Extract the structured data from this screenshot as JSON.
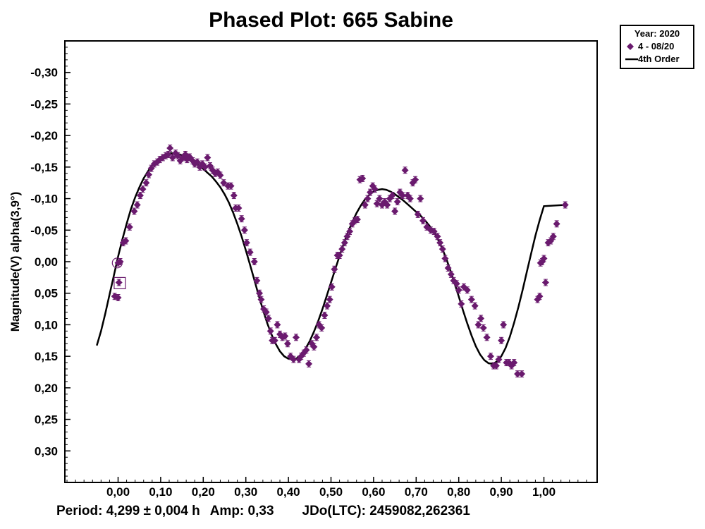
{
  "chart_data": {
    "type": "scatter",
    "title": "Phased Plot: 665 Sabine",
    "xlabel": "",
    "ylabel": "Magnitude(V) alpha(3,9°)",
    "xlim": [
      -0.125,
      1.125
    ],
    "ylim": [
      -0.35,
      0.35
    ],
    "y_inverted": true,
    "x_ticks": [
      0.0,
      0.1,
      0.2,
      0.3,
      0.4,
      0.5,
      0.6,
      0.7,
      0.8,
      0.9,
      1.0
    ],
    "x_tick_labels": [
      "0,00",
      "0,10",
      "0,20",
      "0,30",
      "0,40",
      "0,50",
      "0,60",
      "0,70",
      "0,80",
      "0,90",
      "1,00"
    ],
    "y_ticks": [
      -0.3,
      -0.25,
      -0.2,
      -0.15,
      -0.1,
      -0.05,
      0.0,
      0.05,
      0.1,
      0.15,
      0.2,
      0.25,
      0.3
    ],
    "y_tick_labels": [
      "-0,30",
      "-0,25",
      "-0,20",
      "-0,15",
      "-0,10",
      "-0,05",
      "0,00",
      "0,05",
      "0,10",
      "0,15",
      "0,20",
      "0,25",
      "0,30"
    ],
    "grid": false,
    "legend": {
      "placement": "outside-top-right",
      "title": "Year: 2020",
      "entries": [
        {
          "label": "4 - 08/20",
          "marker": "diamond",
          "color": "#6a1a6e"
        },
        {
          "label": "4th Order",
          "marker": "line",
          "color": "#000000"
        }
      ]
    },
    "series": [
      {
        "name": "4 - 08/20",
        "type": "scatter",
        "marker": "diamond",
        "color": "#6a1a6e",
        "error": 0.005,
        "points": [
          [
            -0.008,
            0.055
          ],
          [
            0.0,
            0.057
          ],
          [
            0.0,
            0.002
          ],
          [
            0.002,
            0.033
          ],
          [
            0.005,
            0.0
          ],
          [
            0.012,
            -0.03
          ],
          [
            0.018,
            -0.033
          ],
          [
            0.027,
            -0.055
          ],
          [
            0.038,
            -0.08
          ],
          [
            0.045,
            -0.09
          ],
          [
            0.052,
            -0.105
          ],
          [
            0.058,
            -0.115
          ],
          [
            0.066,
            -0.125
          ],
          [
            0.072,
            -0.138
          ],
          [
            0.078,
            -0.148
          ],
          [
            0.085,
            -0.155
          ],
          [
            0.092,
            -0.158
          ],
          [
            0.098,
            -0.162
          ],
          [
            0.105,
            -0.165
          ],
          [
            0.112,
            -0.168
          ],
          [
            0.118,
            -0.17
          ],
          [
            0.122,
            -0.18
          ],
          [
            0.128,
            -0.165
          ],
          [
            0.135,
            -0.172
          ],
          [
            0.14,
            -0.168
          ],
          [
            0.146,
            -0.16
          ],
          [
            0.152,
            -0.165
          ],
          [
            0.158,
            -0.17
          ],
          [
            0.162,
            -0.162
          ],
          [
            0.168,
            -0.166
          ],
          [
            0.175,
            -0.16
          ],
          [
            0.18,
            -0.155
          ],
          [
            0.186,
            -0.158
          ],
          [
            0.192,
            -0.15
          ],
          [
            0.198,
            -0.155
          ],
          [
            0.204,
            -0.15
          ],
          [
            0.21,
            -0.165
          ],
          [
            0.216,
            -0.152
          ],
          [
            0.222,
            -0.145
          ],
          [
            0.228,
            -0.14
          ],
          [
            0.234,
            -0.142
          ],
          [
            0.24,
            -0.137
          ],
          [
            0.248,
            -0.125
          ],
          [
            0.258,
            -0.12
          ],
          [
            0.265,
            -0.12
          ],
          [
            0.272,
            -0.105
          ],
          [
            0.276,
            -0.085
          ],
          [
            0.283,
            -0.085
          ],
          [
            0.29,
            -0.068
          ],
          [
            0.297,
            -0.05
          ],
          [
            0.302,
            -0.03
          ],
          [
            0.31,
            -0.015
          ],
          [
            0.32,
            0.0
          ],
          [
            0.326,
            0.03
          ],
          [
            0.332,
            0.05
          ],
          [
            0.336,
            0.06
          ],
          [
            0.342,
            0.075
          ],
          [
            0.348,
            0.08
          ],
          [
            0.353,
            0.09
          ],
          [
            0.358,
            0.11
          ],
          [
            0.362,
            0.125
          ],
          [
            0.368,
            0.125
          ],
          [
            0.374,
            0.1
          ],
          [
            0.38,
            0.115
          ],
          [
            0.386,
            0.12
          ],
          [
            0.392,
            0.118
          ],
          [
            0.398,
            0.13
          ],
          [
            0.405,
            0.15
          ],
          [
            0.412,
            0.155
          ],
          [
            0.418,
            0.12
          ],
          [
            0.425,
            0.155
          ],
          [
            0.43,
            0.15
          ],
          [
            0.436,
            0.145
          ],
          [
            0.442,
            0.14
          ],
          [
            0.448,
            0.162
          ],
          [
            0.455,
            0.13
          ],
          [
            0.46,
            0.135
          ],
          [
            0.466,
            0.12
          ],
          [
            0.472,
            0.1
          ],
          [
            0.478,
            0.105
          ],
          [
            0.485,
            0.085
          ],
          [
            0.491,
            0.07
          ],
          [
            0.497,
            0.06
          ],
          [
            0.502,
            0.04
          ],
          [
            0.508,
            0.012
          ],
          [
            0.515,
            -0.01
          ],
          [
            0.52,
            -0.01
          ],
          [
            0.526,
            -0.02
          ],
          [
            0.532,
            -0.03
          ],
          [
            0.538,
            -0.04
          ],
          [
            0.544,
            -0.048
          ],
          [
            0.55,
            -0.06
          ],
          [
            0.556,
            -0.065
          ],
          [
            0.562,
            -0.067
          ],
          [
            0.568,
            -0.13
          ],
          [
            0.574,
            -0.132
          ],
          [
            0.58,
            -0.09
          ],
          [
            0.586,
            -0.1
          ],
          [
            0.592,
            -0.11
          ],
          [
            0.598,
            -0.12
          ],
          [
            0.603,
            -0.115
          ],
          [
            0.608,
            -0.092
          ],
          [
            0.614,
            -0.1
          ],
          [
            0.62,
            -0.09
          ],
          [
            0.626,
            -0.095
          ],
          [
            0.632,
            -0.09
          ],
          [
            0.638,
            -0.1
          ],
          [
            0.644,
            -0.105
          ],
          [
            0.65,
            -0.08
          ],
          [
            0.656,
            -0.095
          ],
          [
            0.662,
            -0.11
          ],
          [
            0.668,
            -0.105
          ],
          [
            0.674,
            -0.145
          ],
          [
            0.68,
            -0.105
          ],
          [
            0.686,
            -0.1
          ],
          [
            0.692,
            -0.125
          ],
          [
            0.698,
            -0.13
          ],
          [
            0.704,
            -0.075
          ],
          [
            0.71,
            -0.1
          ],
          [
            0.716,
            -0.065
          ],
          [
            0.725,
            -0.055
          ],
          [
            0.734,
            -0.05
          ],
          [
            0.742,
            -0.048
          ],
          [
            0.75,
            -0.04
          ],
          [
            0.756,
            -0.03
          ],
          [
            0.762,
            -0.02
          ],
          [
            0.768,
            -0.005
          ],
          [
            0.775,
            0.01
          ],
          [
            0.782,
            0.02
          ],
          [
            0.788,
            0.03
          ],
          [
            0.795,
            0.035
          ],
          [
            0.8,
            0.045
          ],
          [
            0.806,
            0.067
          ],
          [
            0.812,
            0.04
          ],
          [
            0.82,
            0.045
          ],
          [
            0.83,
            0.06
          ],
          [
            0.838,
            0.07
          ],
          [
            0.846,
            0.1
          ],
          [
            0.852,
            0.09
          ],
          [
            0.858,
            0.105
          ],
          [
            0.866,
            0.12
          ],
          [
            0.875,
            0.15
          ],
          [
            0.882,
            0.165
          ],
          [
            0.888,
            0.165
          ],
          [
            0.894,
            0.155
          ],
          [
            0.9,
            0.125
          ],
          [
            0.905,
            0.1
          ],
          [
            0.912,
            0.16
          ],
          [
            0.918,
            0.16
          ],
          [
            0.924,
            0.165
          ],
          [
            0.93,
            0.16
          ],
          [
            0.938,
            0.178
          ],
          [
            0.948,
            0.178
          ],
          [
            0.985,
            0.06
          ],
          [
            0.99,
            0.055
          ],
          [
            0.992,
            0.002
          ],
          [
            0.996,
            0.0
          ],
          [
            1.0,
            -0.005
          ],
          [
            1.004,
            0.033
          ],
          [
            1.01,
            -0.03
          ],
          [
            1.016,
            -0.033
          ],
          [
            1.022,
            -0.04
          ],
          [
            1.03,
            -0.06
          ],
          [
            1.05,
            -0.09
          ]
        ]
      },
      {
        "name": "4th Order",
        "type": "line",
        "color": "#000000",
        "points": [
          [
            -0.05,
            0.133
          ],
          [
            -0.04,
            0.11
          ],
          [
            -0.03,
            0.082
          ],
          [
            -0.02,
            0.052
          ],
          [
            -0.01,
            0.022
          ],
          [
            0.0,
            -0.008
          ],
          [
            0.01,
            -0.035
          ],
          [
            0.02,
            -0.06
          ],
          [
            0.03,
            -0.083
          ],
          [
            0.04,
            -0.102
          ],
          [
            0.05,
            -0.118
          ],
          [
            0.06,
            -0.132
          ],
          [
            0.07,
            -0.143
          ],
          [
            0.08,
            -0.153
          ],
          [
            0.09,
            -0.16
          ],
          [
            0.1,
            -0.166
          ],
          [
            0.11,
            -0.17
          ],
          [
            0.12,
            -0.172
          ],
          [
            0.13,
            -0.172
          ],
          [
            0.14,
            -0.171
          ],
          [
            0.15,
            -0.169
          ],
          [
            0.16,
            -0.166
          ],
          [
            0.17,
            -0.162
          ],
          [
            0.18,
            -0.157
          ],
          [
            0.19,
            -0.152
          ],
          [
            0.2,
            -0.147
          ],
          [
            0.21,
            -0.141
          ],
          [
            0.22,
            -0.135
          ],
          [
            0.23,
            -0.127
          ],
          [
            0.24,
            -0.118
          ],
          [
            0.25,
            -0.107
          ],
          [
            0.26,
            -0.094
          ],
          [
            0.27,
            -0.078
          ],
          [
            0.28,
            -0.06
          ],
          [
            0.29,
            -0.04
          ],
          [
            0.3,
            -0.018
          ],
          [
            0.31,
            0.005
          ],
          [
            0.32,
            0.029
          ],
          [
            0.33,
            0.053
          ],
          [
            0.34,
            0.076
          ],
          [
            0.35,
            0.097
          ],
          [
            0.36,
            0.115
          ],
          [
            0.37,
            0.13
          ],
          [
            0.38,
            0.142
          ],
          [
            0.39,
            0.15
          ],
          [
            0.4,
            0.154
          ],
          [
            0.41,
            0.155
          ],
          [
            0.42,
            0.153
          ],
          [
            0.43,
            0.147
          ],
          [
            0.44,
            0.138
          ],
          [
            0.45,
            0.126
          ],
          [
            0.46,
            0.111
          ],
          [
            0.47,
            0.094
          ],
          [
            0.48,
            0.075
          ],
          [
            0.49,
            0.054
          ],
          [
            0.5,
            0.033
          ],
          [
            0.51,
            0.012
          ],
          [
            0.52,
            -0.009
          ],
          [
            0.53,
            -0.029
          ],
          [
            0.54,
            -0.047
          ],
          [
            0.55,
            -0.063
          ],
          [
            0.56,
            -0.077
          ],
          [
            0.57,
            -0.089
          ],
          [
            0.58,
            -0.099
          ],
          [
            0.59,
            -0.106
          ],
          [
            0.6,
            -0.111
          ],
          [
            0.61,
            -0.114
          ],
          [
            0.62,
            -0.115
          ],
          [
            0.63,
            -0.114
          ],
          [
            0.64,
            -0.111
          ],
          [
            0.65,
            -0.107
          ],
          [
            0.66,
            -0.102
          ],
          [
            0.67,
            -0.097
          ],
          [
            0.68,
            -0.091
          ],
          [
            0.69,
            -0.085
          ],
          [
            0.7,
            -0.079
          ],
          [
            0.71,
            -0.073
          ],
          [
            0.72,
            -0.066
          ],
          [
            0.73,
            -0.058
          ],
          [
            0.74,
            -0.049
          ],
          [
            0.75,
            -0.037
          ],
          [
            0.76,
            -0.023
          ],
          [
            0.77,
            -0.006
          ],
          [
            0.78,
            0.013
          ],
          [
            0.79,
            0.034
          ],
          [
            0.8,
            0.055
          ],
          [
            0.81,
            0.077
          ],
          [
            0.82,
            0.098
          ],
          [
            0.83,
            0.117
          ],
          [
            0.84,
            0.134
          ],
          [
            0.85,
            0.147
          ],
          [
            0.86,
            0.156
          ],
          [
            0.87,
            0.161
          ],
          [
            0.88,
            0.162
          ],
          [
            0.89,
            0.158
          ],
          [
            0.9,
            0.15
          ],
          [
            0.91,
            0.137
          ],
          [
            0.92,
            0.119
          ],
          [
            0.93,
            0.097
          ],
          [
            0.94,
            0.072
          ],
          [
            0.95,
            0.045
          ],
          [
            0.96,
            0.016
          ],
          [
            0.97,
            -0.013
          ],
          [
            0.98,
            -0.041
          ],
          [
            0.99,
            -0.066
          ],
          [
            1.0,
            -0.088
          ],
          [
            1.05,
            -0.09
          ]
        ]
      }
    ],
    "annotations": [
      {
        "shape": "circle",
        "x": -0.002,
        "y": 0.002
      },
      {
        "shape": "square",
        "x": 0.004,
        "y": 0.034
      }
    ],
    "footer": {
      "period": "Period: 4,299 ± 0,004 h",
      "amp": "Amp: 0,33",
      "jdo": "JDo(LTC): 2459082,262361"
    }
  }
}
